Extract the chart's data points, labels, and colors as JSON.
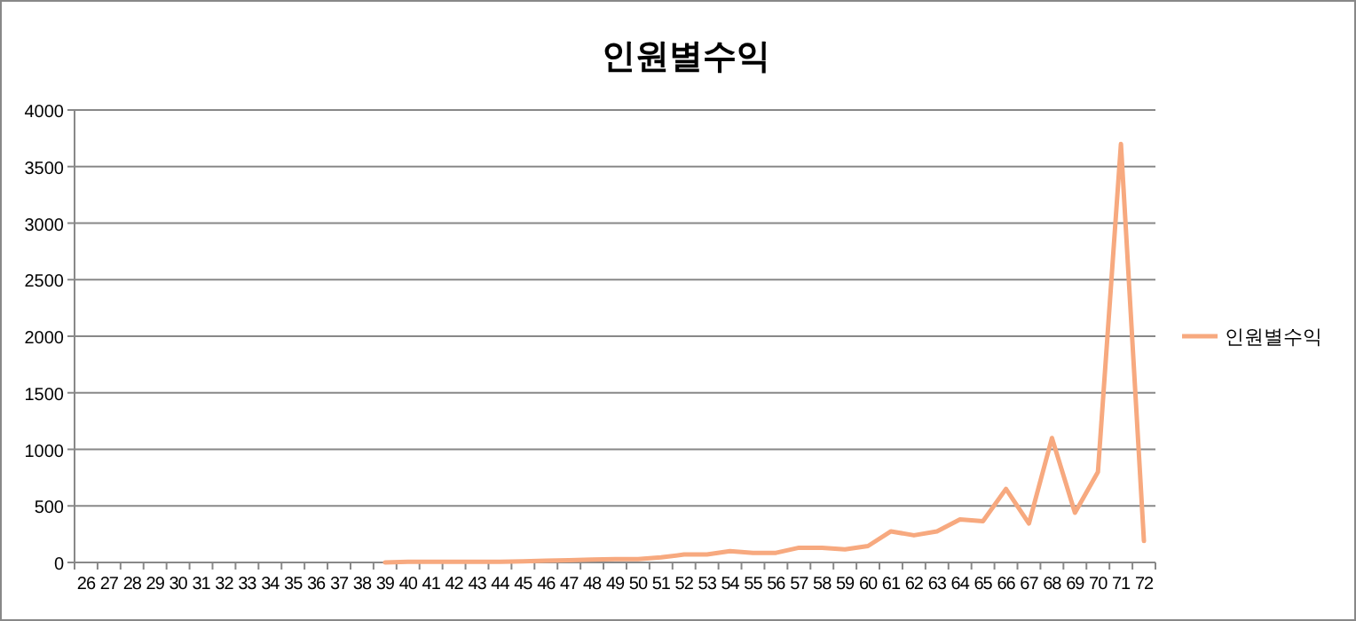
{
  "chart_data": {
    "type": "line",
    "title": "인원별수익",
    "categories": [
      "26",
      "27",
      "28",
      "29",
      "30",
      "31",
      "32",
      "33",
      "34",
      "35",
      "36",
      "37",
      "38",
      "39",
      "40",
      "41",
      "42",
      "43",
      "44",
      "45",
      "46",
      "47",
      "48",
      "49",
      "50",
      "51",
      "52",
      "53",
      "54",
      "55",
      "56",
      "57",
      "58",
      "59",
      "60",
      "61",
      "62",
      "63",
      "64",
      "65",
      "66",
      "67",
      "68",
      "69",
      "70",
      "71",
      "72"
    ],
    "series": [
      {
        "name": "인원별수익",
        "color": "#f7a97f",
        "values": [
          null,
          null,
          null,
          null,
          null,
          null,
          null,
          null,
          null,
          null,
          null,
          null,
          null,
          0,
          5,
          5,
          5,
          5,
          5,
          10,
          15,
          20,
          25,
          30,
          30,
          45,
          70,
          70,
          100,
          85,
          85,
          130,
          130,
          115,
          145,
          275,
          240,
          275,
          380,
          365,
          650,
          345,
          1100,
          440,
          800,
          3700,
          190
        ]
      }
    ],
    "ylim": [
      0,
      4000
    ],
    "yticks": [
      0,
      500,
      1000,
      1500,
      2000,
      2500,
      3000,
      3500,
      4000
    ],
    "grid": "y",
    "legend": "right",
    "marker": "none",
    "line_style": "solid"
  }
}
